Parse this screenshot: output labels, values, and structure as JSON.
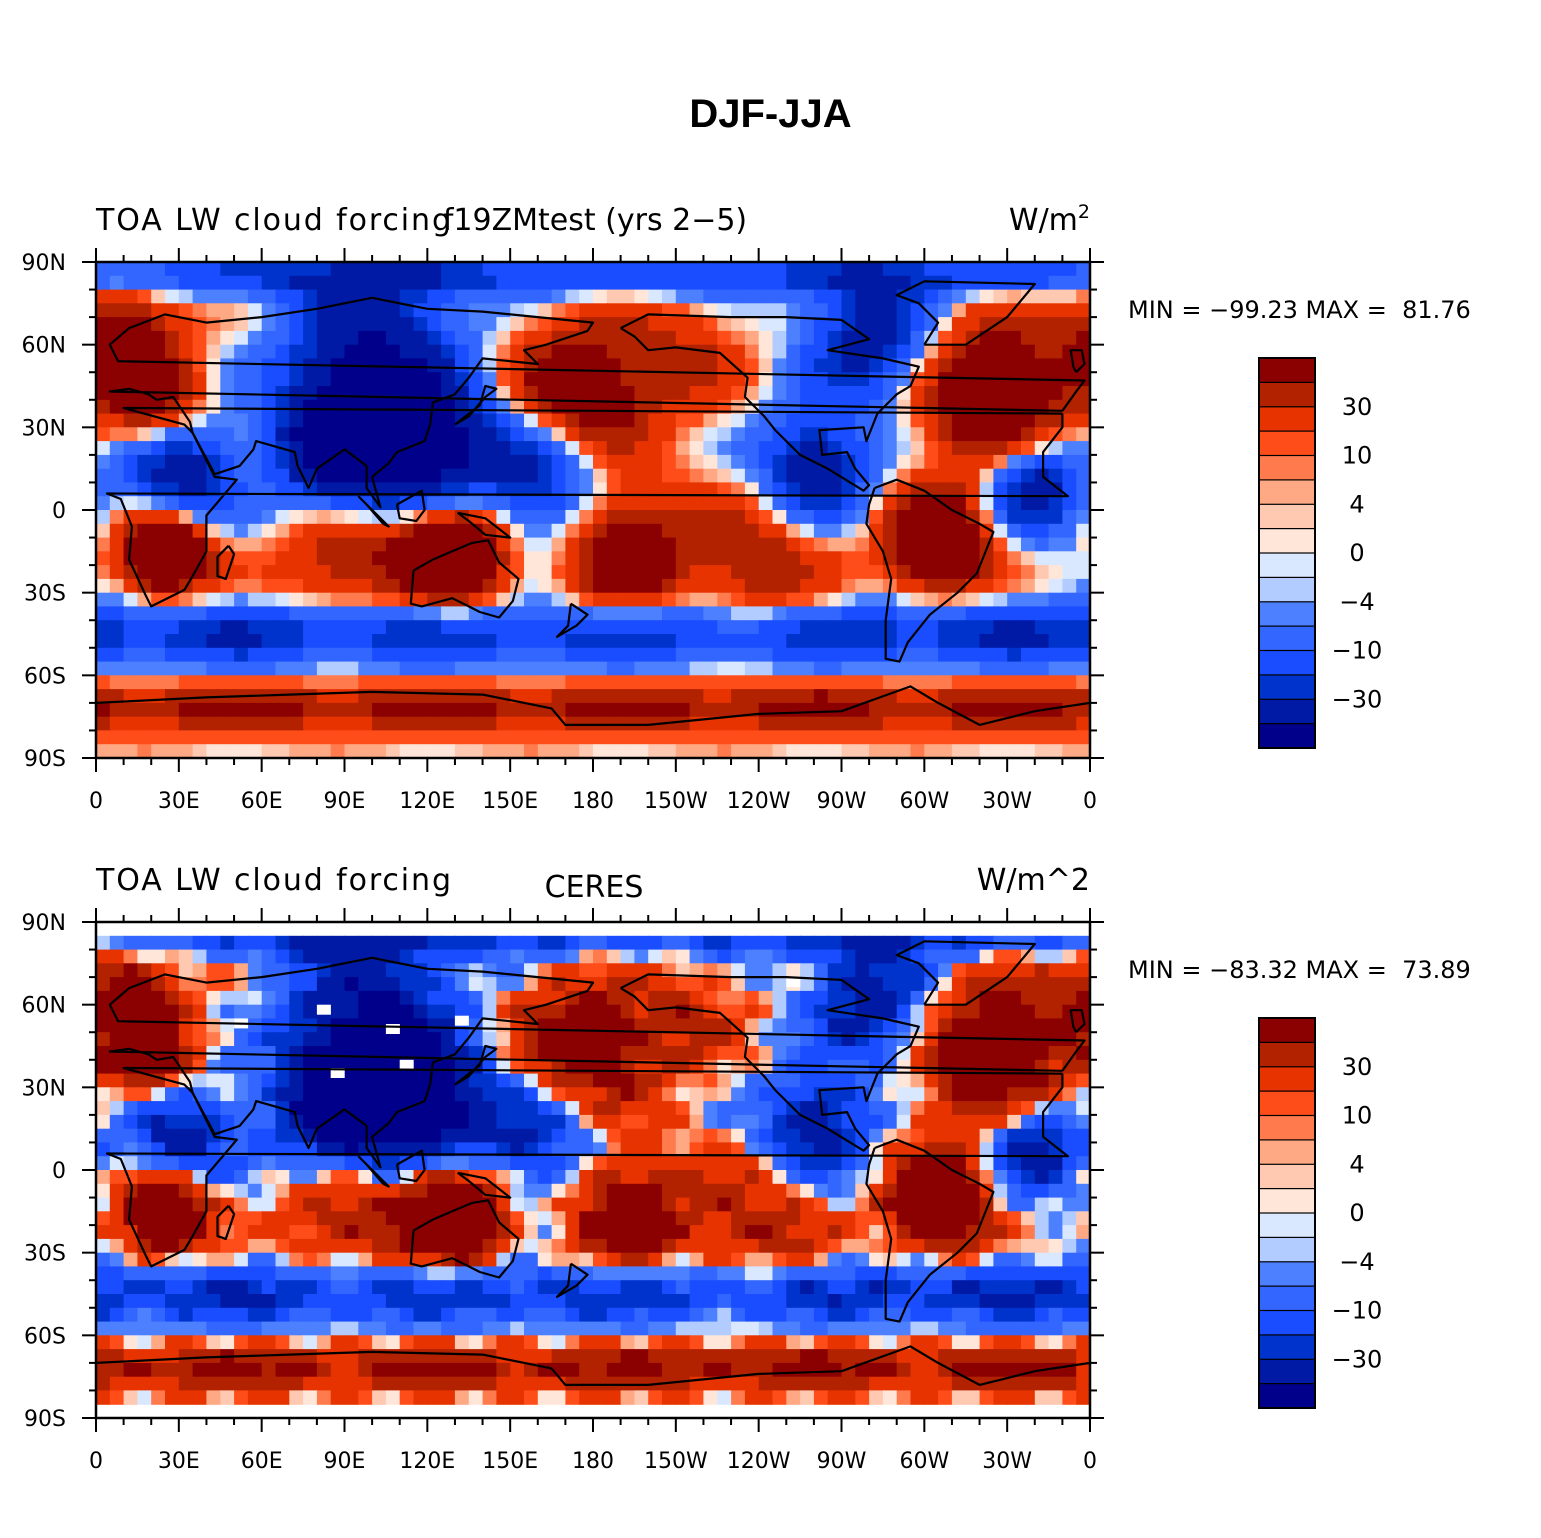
{
  "title": "DJF-JJA",
  "colors": {
    "levels": [
      "#00008b",
      "#001aa6",
      "#0033cc",
      "#1a4dff",
      "#3366ff",
      "#4d80ff",
      "#b3ccff",
      "#d9e8ff",
      "#ffe6d9",
      "#ffc8b0",
      "#ffa884",
      "#ff7a4d",
      "#ff4d1a",
      "#e63300",
      "#b32200",
      "#8b0000"
    ],
    "missing": "#ffffff",
    "coast": "#000000"
  },
  "colorbar": {
    "labels": [
      "30",
      "10",
      "4",
      "0",
      "−4",
      "−10",
      "−30"
    ]
  },
  "panels": [
    {
      "id": "model",
      "left_title": "TOA LW cloud forcing",
      "center_title": "f19ZMtest (yrs 2−5)",
      "right_title_base": "W/m",
      "right_title_sup": "2",
      "stats": "MIN = −99.23 MAX =  81.76"
    },
    {
      "id": "obs",
      "left_title": "TOA LW cloud forcing",
      "center_title": "CERES",
      "right_title_base": "W/m^2",
      "right_title_sup": "",
      "stats": "MIN = −83.32 MAX =  73.89"
    }
  ],
  "axes": {
    "lat_labels": [
      "90N",
      "60N",
      "30N",
      "0",
      "30S",
      "60S",
      "90S"
    ],
    "lon_labels": [
      "0",
      "30E",
      "60E",
      "90E",
      "120E",
      "150E",
      "180",
      "150W",
      "120W",
      "90W",
      "60W",
      "30W",
      "0"
    ]
  }
}
